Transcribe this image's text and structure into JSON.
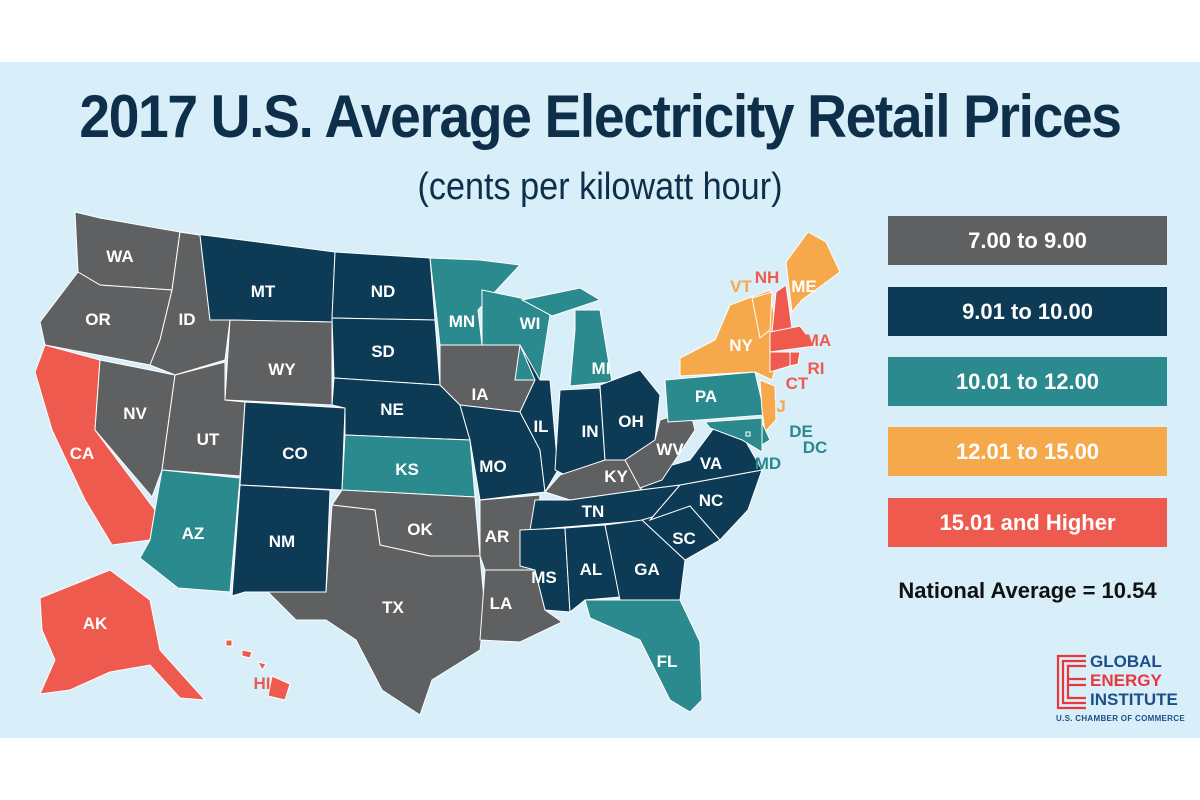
{
  "title": "2017 U.S. Average Electricity Retail Prices",
  "subtitle": "(cents per kilowatt hour)",
  "colors": {
    "background": "#d8eef8",
    "gray": "#5f6062",
    "navy": "#0d3a54",
    "teal": "#2b8a8e",
    "orange": "#f6a94a",
    "red": "#ef5a4e"
  },
  "legend": [
    {
      "label": "7.00 to 9.00",
      "category": "gray"
    },
    {
      "label": "9.01 to 10.00",
      "category": "navy"
    },
    {
      "label": "10.01 to 12.00",
      "category": "teal"
    },
    {
      "label": "12.01 to 15.00",
      "category": "orange"
    },
    {
      "label": "15.01 and Higher",
      "category": "red"
    }
  ],
  "national_average": "National Average = 10.54",
  "states": [
    {
      "abbr": "WA",
      "category": "gray"
    },
    {
      "abbr": "OR",
      "category": "gray"
    },
    {
      "abbr": "CA",
      "category": "red"
    },
    {
      "abbr": "NV",
      "category": "gray"
    },
    {
      "abbr": "ID",
      "category": "gray"
    },
    {
      "abbr": "MT",
      "category": "navy"
    },
    {
      "abbr": "WY",
      "category": "gray"
    },
    {
      "abbr": "UT",
      "category": "gray"
    },
    {
      "abbr": "CO",
      "category": "navy"
    },
    {
      "abbr": "AZ",
      "category": "teal"
    },
    {
      "abbr": "NM",
      "category": "navy"
    },
    {
      "abbr": "ND",
      "category": "navy"
    },
    {
      "abbr": "SD",
      "category": "navy"
    },
    {
      "abbr": "NE",
      "category": "navy"
    },
    {
      "abbr": "KS",
      "category": "teal"
    },
    {
      "abbr": "OK",
      "category": "gray"
    },
    {
      "abbr": "TX",
      "category": "gray"
    },
    {
      "abbr": "MN",
      "category": "teal"
    },
    {
      "abbr": "IA",
      "category": "gray"
    },
    {
      "abbr": "MO",
      "category": "navy"
    },
    {
      "abbr": "AR",
      "category": "gray"
    },
    {
      "abbr": "LA",
      "category": "gray"
    },
    {
      "abbr": "WI",
      "category": "teal"
    },
    {
      "abbr": "IL",
      "category": "navy"
    },
    {
      "abbr": "MI",
      "category": "teal"
    },
    {
      "abbr": "IN",
      "category": "navy"
    },
    {
      "abbr": "OH",
      "category": "navy"
    },
    {
      "abbr": "KY",
      "category": "gray"
    },
    {
      "abbr": "TN",
      "category": "navy"
    },
    {
      "abbr": "MS",
      "category": "navy"
    },
    {
      "abbr": "AL",
      "category": "navy"
    },
    {
      "abbr": "GA",
      "category": "navy"
    },
    {
      "abbr": "FL",
      "category": "teal"
    },
    {
      "abbr": "SC",
      "category": "navy"
    },
    {
      "abbr": "NC",
      "category": "navy"
    },
    {
      "abbr": "VA",
      "category": "navy"
    },
    {
      "abbr": "WV",
      "category": "gray"
    },
    {
      "abbr": "PA",
      "category": "teal"
    },
    {
      "abbr": "NY",
      "category": "orange"
    },
    {
      "abbr": "NJ",
      "category": "orange"
    },
    {
      "abbr": "VT",
      "category": "orange"
    },
    {
      "abbr": "NH",
      "category": "red"
    },
    {
      "abbr": "ME",
      "category": "orange"
    },
    {
      "abbr": "MA",
      "category": "red"
    },
    {
      "abbr": "CT",
      "category": "red"
    },
    {
      "abbr": "RI",
      "category": "red"
    },
    {
      "abbr": "DE",
      "category": "teal"
    },
    {
      "abbr": "MD",
      "category": "teal"
    },
    {
      "abbr": "DC",
      "category": "teal"
    },
    {
      "abbr": "AK",
      "category": "red"
    },
    {
      "abbr": "HI",
      "category": "red"
    }
  ],
  "logo": {
    "line1": "GLOBAL",
    "line2": "ENERGY",
    "line3": "INSTITUTE",
    "sub": "U.S. CHAMBER OF COMMERCE"
  }
}
